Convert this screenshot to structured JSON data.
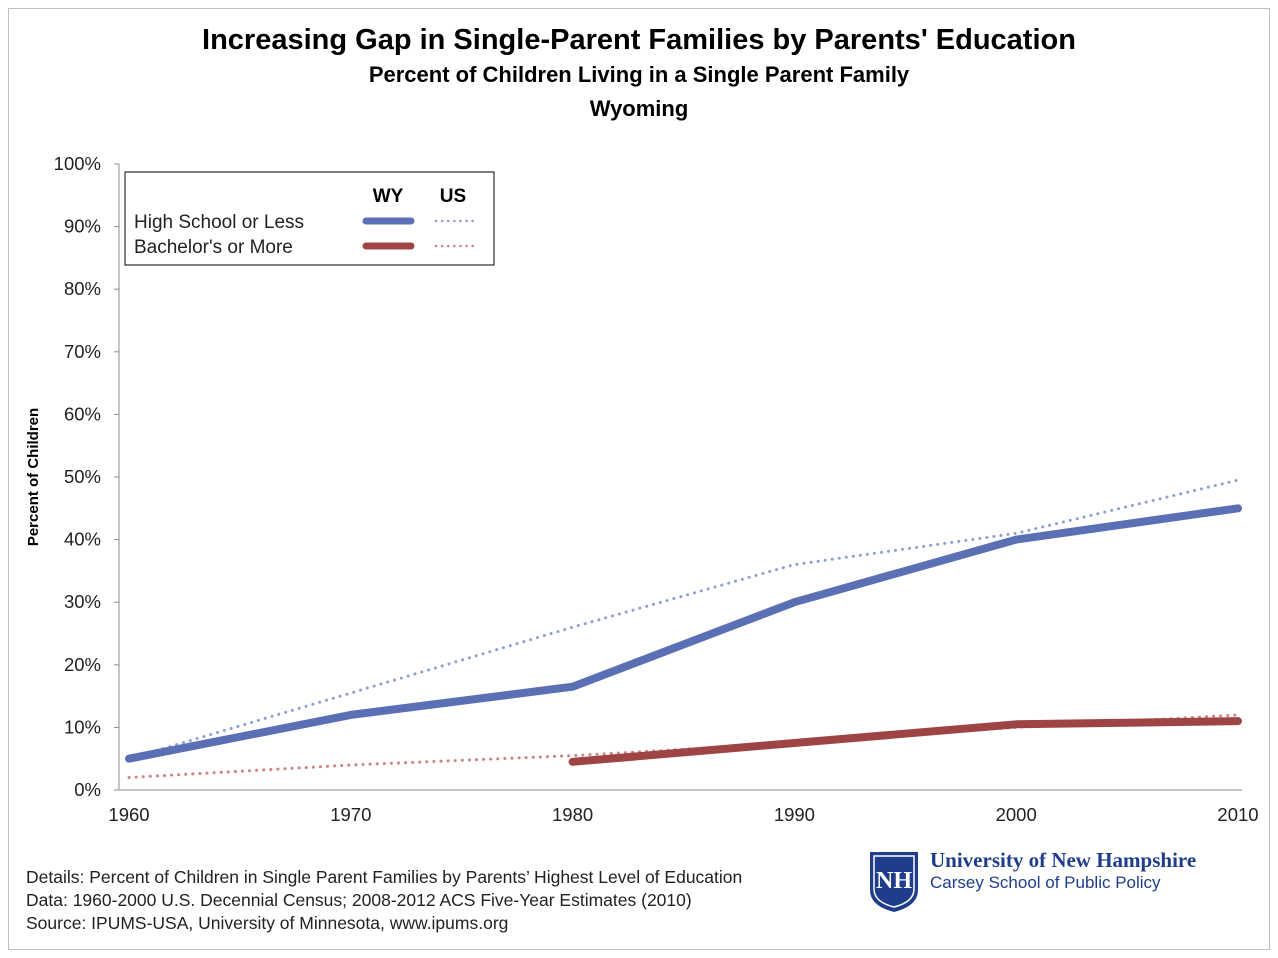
{
  "chart_data": {
    "type": "line",
    "title": "Increasing Gap in Single-Parent Families by Parents' Education",
    "subtitle": "Percent of Children Living in a Single Parent Family",
    "subtitle2": "Wyoming",
    "ylabel": "Percent of Children",
    "xlabel": "",
    "x": [
      1960,
      1970,
      1980,
      1990,
      2000,
      2010
    ],
    "xlim": [
      1960,
      2010
    ],
    "ylim": [
      0,
      100
    ],
    "xtick_labels": [
      "1960",
      "1970",
      "1980",
      "1990",
      "2000",
      "2010"
    ],
    "ytick_labels": [
      "0%",
      "10%",
      "20%",
      "30%",
      "40%",
      "50%",
      "60%",
      "70%",
      "80%",
      "90%",
      "100%"
    ],
    "grid": false,
    "legend": {
      "position": "top-left",
      "col_headers": [
        "WY",
        "US"
      ],
      "rows": [
        "High School or Less",
        "Bachelor's or More"
      ]
    },
    "series": [
      {
        "group": "High School or Less",
        "geo": "WY",
        "style": "solid",
        "color": "#5b6fb5",
        "x": [
          1960,
          1970,
          1980,
          1990,
          2000,
          2010
        ],
        "values": [
          5,
          12,
          16.5,
          30,
          40,
          45
        ]
      },
      {
        "group": "High School or Less",
        "geo": "US",
        "style": "dotted",
        "color": "#8e9fd0",
        "x": [
          1960,
          1970,
          1980,
          1990,
          2000,
          2010
        ],
        "values": [
          5,
          15.5,
          26,
          36,
          41,
          49.5
        ]
      },
      {
        "group": "Bachelor's or More",
        "geo": "WY",
        "style": "solid",
        "color": "#9e4444",
        "x": [
          1980,
          1990,
          2000,
          2010
        ],
        "values": [
          4.5,
          7.5,
          10.5,
          11
        ]
      },
      {
        "group": "Bachelor's or More",
        "geo": "US",
        "style": "dotted",
        "color": "#cc8484",
        "x": [
          1960,
          1970,
          1980,
          1990,
          2000,
          2010
        ],
        "values": [
          2,
          4,
          5.5,
          7.5,
          10,
          12
        ]
      }
    ]
  },
  "footer": {
    "details": "Details: Percent of Children in Single Parent Families by Parents’ Highest Level of Education",
    "data": "Data: 1960-2000 U.S. Decennial Census; 2008-2012 ACS Five-Year Estimates (2010)",
    "source": "Source: IPUMS-USA,  University of Minnesota, www.ipums.org"
  },
  "branding": {
    "university": "University of New Hampshire",
    "school": "Carsey School of Public Policy",
    "logo_text": "NH",
    "color": "#1f3d8a"
  }
}
